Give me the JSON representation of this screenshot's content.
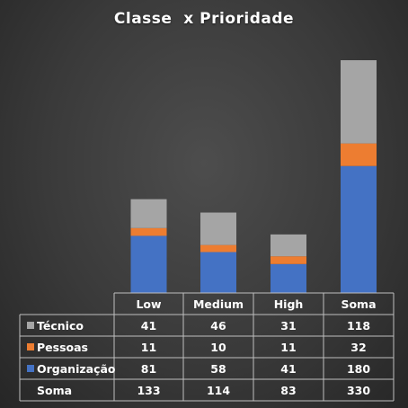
{
  "chart_data": {
    "type": "bar",
    "stacked": true,
    "title": "Classe  x Prioridade",
    "xlabel": "",
    "ylabel": "",
    "ylim": [
      0,
      330
    ],
    "grid": false,
    "legend": "in-data-table",
    "categories": [
      "Low",
      "Medium",
      "High",
      "Soma"
    ],
    "series": [
      {
        "name": "Organização",
        "values": [
          81,
          58,
          41,
          180
        ],
        "color": "#4472c4"
      },
      {
        "name": "Pessoas",
        "values": [
          11,
          10,
          11,
          32
        ],
        "color": "#ed7d31"
      },
      {
        "name": "Técnico",
        "values": [
          41,
          46,
          31,
          118
        ],
        "color": "#a5a5a5"
      }
    ],
    "table_row_order": [
      "Técnico",
      "Pessoas",
      "Organização"
    ],
    "totals": {
      "label": "Soma",
      "values": [
        133,
        114,
        83,
        330
      ]
    }
  }
}
